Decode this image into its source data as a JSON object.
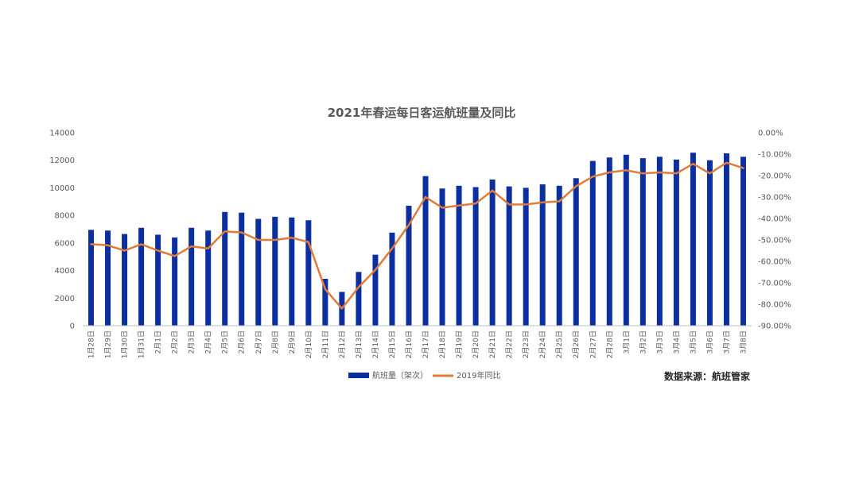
{
  "chart_data": {
    "type": "bar",
    "title": "2021年春运每日客运航班量及同比",
    "categories": [
      "1月28日",
      "1月29日",
      "1月30日",
      "1月31日",
      "2月1日",
      "2月2日",
      "2月3日",
      "2月4日",
      "2月5日",
      "2月6日",
      "2月7日",
      "2月8日",
      "2月9日",
      "2月10日",
      "2月11日",
      "2月12日",
      "2月13日",
      "2月14日",
      "2月15日",
      "2月16日",
      "2月17日",
      "2月18日",
      "2月19日",
      "2月20日",
      "2月21日",
      "2月22日",
      "2月23日",
      "2月24日",
      "2月25日",
      "2月26日",
      "2月27日",
      "2月28日",
      "3月1日",
      "3月2日",
      "3月3日",
      "3月4日",
      "3月5日",
      "3月6日",
      "3月7日",
      "3月8日"
    ],
    "series": [
      {
        "name": "航班量（架次）",
        "type": "bar",
        "axis": "left",
        "color": "#0B2FA0",
        "values": [
          6950,
          6900,
          6650,
          7100,
          6600,
          6400,
          7100,
          6900,
          8250,
          8200,
          7750,
          7900,
          7850,
          7650,
          3400,
          2450,
          3900,
          5150,
          6750,
          8700,
          10850,
          9950,
          10150,
          10050,
          10600,
          10100,
          10000,
          10250,
          10150,
          10700,
          11950,
          12200,
          12400,
          12150,
          12250,
          12050,
          12550,
          12000,
          12500,
          12250
        ]
      },
      {
        "name": "2019年同比",
        "type": "line",
        "axis": "right",
        "color": "#E07B3A",
        "values": [
          -52,
          -52.5,
          -55,
          -52,
          -55,
          -57.5,
          -53,
          -54,
          -46,
          -46.5,
          -50,
          -50,
          -49,
          -51,
          -73,
          -82,
          -72,
          -64,
          -54,
          -43,
          -30,
          -35,
          -34,
          -33,
          -27,
          -33.5,
          -33.5,
          -32.5,
          -32,
          -25,
          -20.5,
          -18.5,
          -17.5,
          -19,
          -18.5,
          -19,
          -14.5,
          -19,
          -14,
          -16.5
        ]
      }
    ],
    "y_left": {
      "min": 0,
      "max": 14000,
      "ticks": [
        "0",
        "2000",
        "4000",
        "6000",
        "8000",
        "10000",
        "12000",
        "14000"
      ]
    },
    "y_right": {
      "min": -90,
      "max": 0,
      "ticks": [
        "-90.00%",
        "-80.00%",
        "-70.00%",
        "-60.00%",
        "-50.00%",
        "-40.00%",
        "-30.00%",
        "-20.00%",
        "-10.00%",
        "0.00%"
      ]
    },
    "grid": false,
    "legend_position": "bottom"
  },
  "source_note": "数据来源：航班管家"
}
